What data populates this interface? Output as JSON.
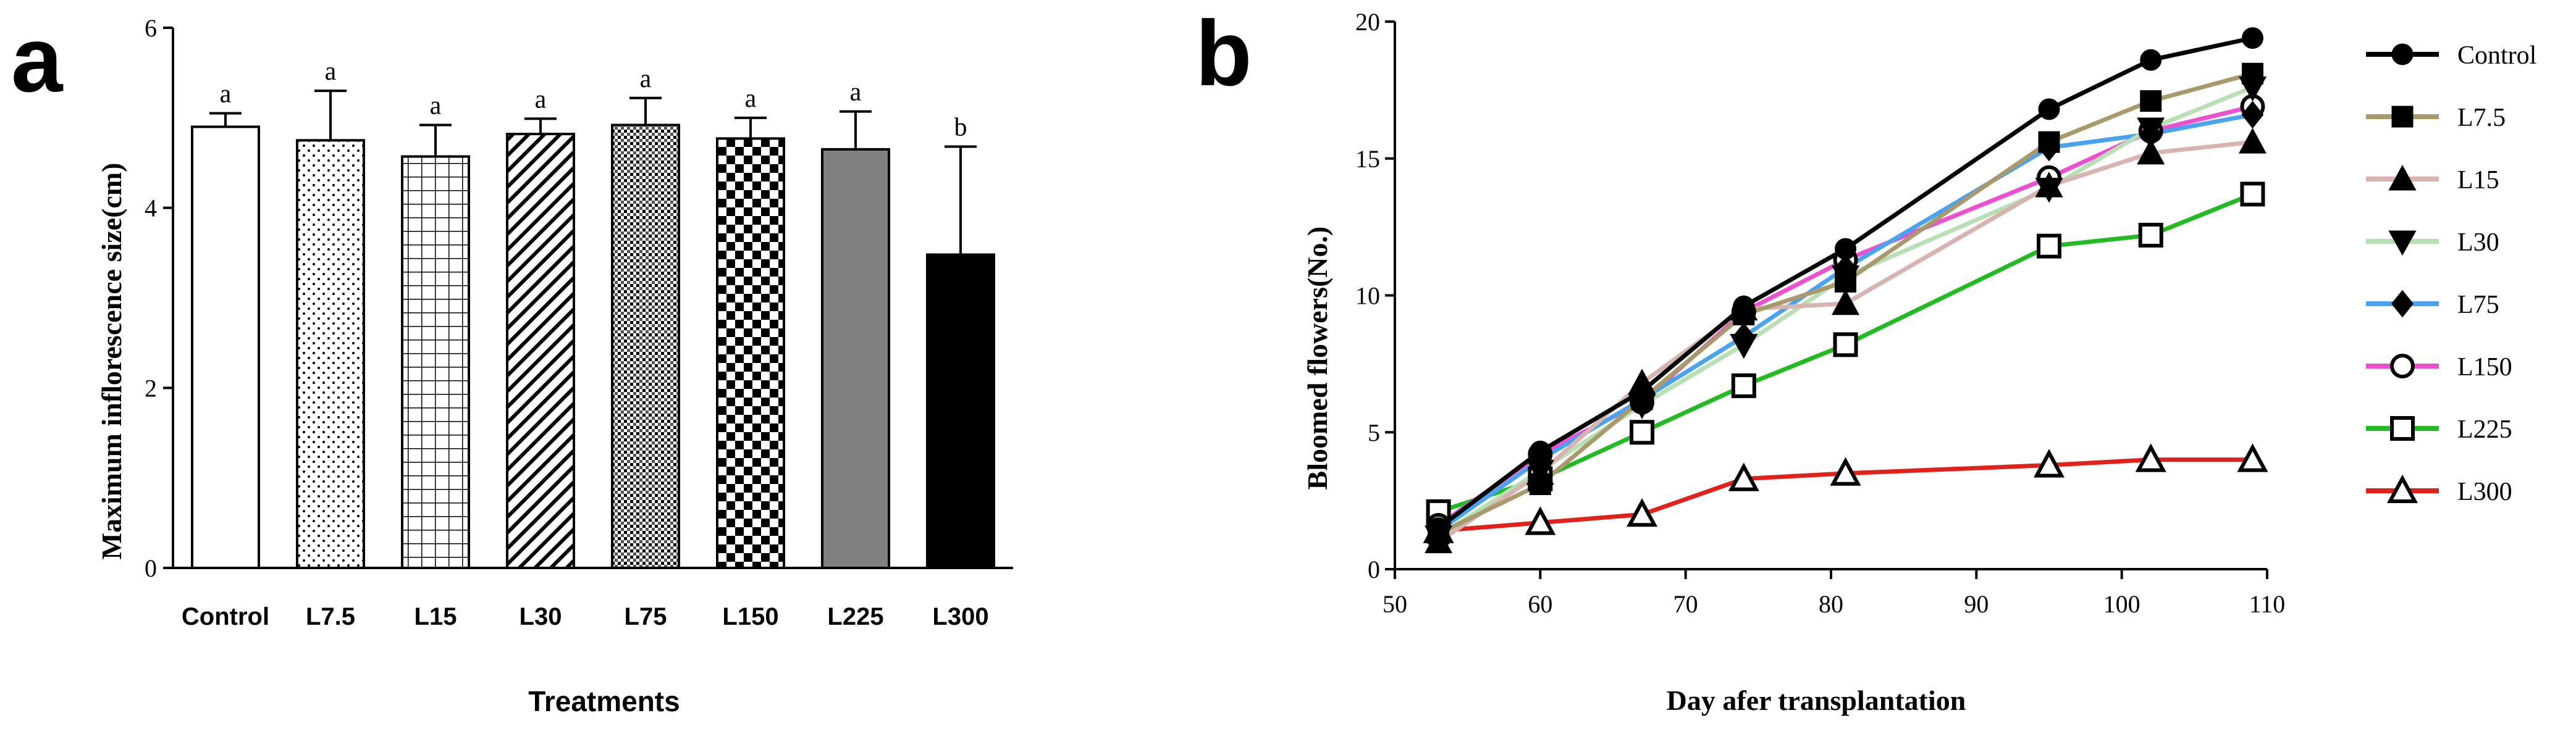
{
  "panel_a": {
    "label": "a",
    "chart_data": {
      "type": "bar",
      "title": "",
      "xlabel": "Treatments",
      "ylabel": "Maximum inflorescence size(cm)",
      "ylim": [
        0,
        6
      ],
      "yticks": [
        "0",
        "2",
        "4",
        "6"
      ],
      "categories": [
        "Control",
        "L7.5",
        "L15",
        "L30",
        "L75",
        "L150",
        "L225",
        "L300"
      ],
      "values": [
        4.9,
        4.75,
        4.57,
        4.82,
        4.92,
        4.77,
        4.65,
        3.48
      ],
      "errors": [
        0.15,
        0.55,
        0.35,
        0.17,
        0.3,
        0.23,
        0.42,
        1.2
      ],
      "significance": [
        "a",
        "a",
        "a",
        "a",
        "a",
        "a",
        "a",
        "b"
      ],
      "patterns": [
        "white",
        "dots",
        "grid",
        "diagonal",
        "dense-dots",
        "checker",
        "gray",
        "black"
      ]
    }
  },
  "panel_b": {
    "label": "b",
    "chart_data": {
      "type": "line",
      "title": "",
      "xlabel": "Day afer transplantation",
      "ylabel": "Bloomed flowers(No.)",
      "xlim": [
        50,
        110
      ],
      "ylim": [
        0,
        20
      ],
      "xticks": [
        "50",
        "60",
        "70",
        "80",
        "90",
        "100",
        "110"
      ],
      "yticks": [
        "0",
        "5",
        "10",
        "15",
        "20"
      ],
      "x": [
        53,
        60,
        67,
        74,
        81,
        95,
        102,
        109
      ],
      "series": [
        {
          "name": "Control",
          "color": "#000000",
          "marker": "circle-filled",
          "values": [
            1.5,
            4.3,
            6.5,
            9.6,
            11.7,
            16.8,
            18.6,
            19.4
          ]
        },
        {
          "name": "L7.5",
          "color": "#a89a6c",
          "marker": "square-filled",
          "values": [
            1.3,
            3.1,
            6.2,
            9.3,
            10.5,
            15.6,
            17.1,
            18.1
          ]
        },
        {
          "name": "L15",
          "color": "#d8b4b0",
          "marker": "triangle-filled",
          "values": [
            1.0,
            3.5,
            6.8,
            9.5,
            9.7,
            14.0,
            15.2,
            15.6
          ]
        },
        {
          "name": "L30",
          "color": "#b9e0b5",
          "marker": "triangle-down-filled",
          "values": [
            1.2,
            3.6,
            6.0,
            8.2,
            10.7,
            13.9,
            16.1,
            17.6
          ]
        },
        {
          "name": "L75",
          "color": "#4aa3f0",
          "marker": "diamond-filled",
          "values": [
            1.4,
            4.0,
            6.2,
            8.5,
            11.0,
            15.4,
            15.9,
            16.6
          ]
        },
        {
          "name": "L150",
          "color": "#ee4fd0",
          "marker": "circle-open",
          "values": [
            1.6,
            4.2,
            6.1,
            9.4,
            11.3,
            14.3,
            16.0,
            16.9
          ]
        },
        {
          "name": "L225",
          "color": "#22bb22",
          "marker": "square-open",
          "values": [
            2.1,
            3.3,
            5.0,
            6.7,
            8.2,
            11.8,
            12.2,
            13.7
          ]
        },
        {
          "name": "L300",
          "color": "#e3211b",
          "marker": "triangle-open",
          "values": [
            1.4,
            1.7,
            2.0,
            3.3,
            3.5,
            3.8,
            4.0,
            4.0
          ]
        }
      ]
    }
  }
}
